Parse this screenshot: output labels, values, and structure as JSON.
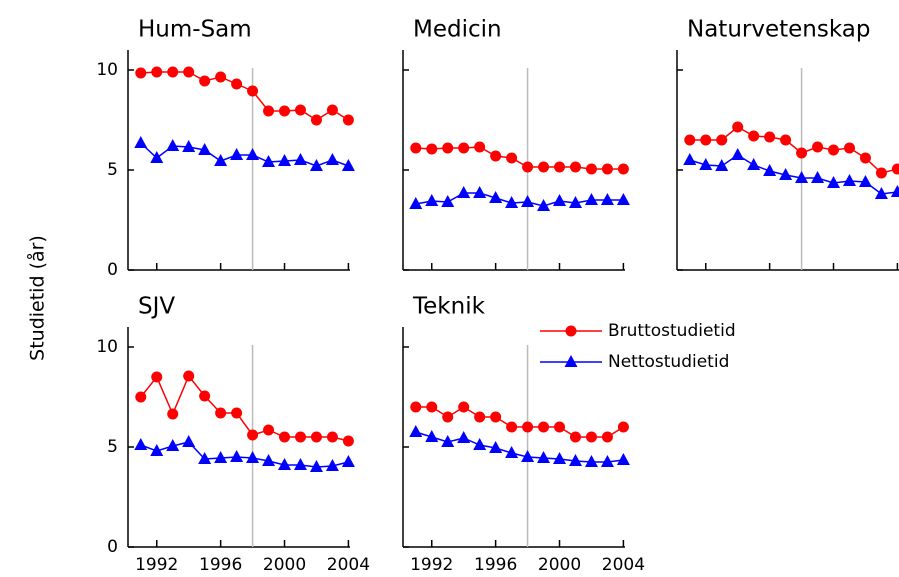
{
  "ylabel": "Studietid (år)",
  "chart_data": [
    {
      "type": "line",
      "title": "Hum-Sam",
      "x": [
        1991,
        1992,
        1993,
        1994,
        1995,
        1996,
        1997,
        1998,
        1999,
        2000,
        2001,
        2002,
        2003,
        2004
      ],
      "xlim": [
        1990.2,
        2004.1
      ],
      "xticks": [
        1992,
        1996,
        2000,
        2004
      ],
      "ylim": [
        0,
        11
      ],
      "yticks": [
        0,
        5,
        10
      ],
      "vline": 1998,
      "series": [
        {
          "color": "#ff0000",
          "marker": "circle",
          "values": [
            9.85,
            9.9,
            9.9,
            9.9,
            9.45,
            9.65,
            9.3,
            8.95,
            7.95,
            7.95,
            8.0,
            7.5,
            8.0,
            7.5
          ]
        },
        {
          "color": "#0000ff",
          "marker": "triangle",
          "values": [
            6.35,
            5.6,
            6.2,
            6.15,
            6.0,
            5.45,
            5.75,
            5.75,
            5.4,
            5.45,
            5.5,
            5.2,
            5.5,
            5.2
          ]
        }
      ]
    },
    {
      "type": "line",
      "title": "Medicin",
      "x": [
        1991,
        1992,
        1993,
        1994,
        1995,
        1996,
        1997,
        1998,
        1999,
        2000,
        2001,
        2002,
        2003,
        2004
      ],
      "xlim": [
        1990.2,
        2004.1
      ],
      "xticks": [
        1992,
        1996,
        2000,
        2004
      ],
      "ylim": [
        0,
        11
      ],
      "yticks": [
        0,
        5,
        10
      ],
      "vline": 1998,
      "series": [
        {
          "color": "#ff0000",
          "marker": "circle",
          "values": [
            6.1,
            6.05,
            6.1,
            6.1,
            6.15,
            5.7,
            5.6,
            5.15,
            5.15,
            5.15,
            5.15,
            5.05,
            5.05,
            5.05
          ]
        },
        {
          "color": "#0000ff",
          "marker": "triangle",
          "values": [
            3.3,
            3.45,
            3.4,
            3.85,
            3.85,
            3.6,
            3.35,
            3.4,
            3.2,
            3.45,
            3.35,
            3.5,
            3.5,
            3.5
          ]
        }
      ]
    },
    {
      "type": "line",
      "title": "Naturvetenskap",
      "x": [
        1991,
        1992,
        1993,
        1994,
        1995,
        1996,
        1997,
        1998,
        1999,
        2000,
        2001,
        2002,
        2003,
        2004
      ],
      "xlim": [
        1990.2,
        2004.1
      ],
      "xticks": [
        1992,
        1996,
        2000,
        2004
      ],
      "ylim": [
        0,
        11
      ],
      "yticks": [
        0,
        5,
        10
      ],
      "vline": 1998,
      "series": [
        {
          "color": "#ff0000",
          "marker": "circle",
          "values": [
            6.5,
            6.5,
            6.5,
            7.15,
            6.7,
            6.65,
            6.5,
            5.85,
            6.15,
            6.0,
            6.1,
            5.6,
            4.85,
            5.05
          ]
        },
        {
          "color": "#0000ff",
          "marker": "triangle",
          "values": [
            5.5,
            5.25,
            5.2,
            5.75,
            5.25,
            4.95,
            4.75,
            4.6,
            4.6,
            4.35,
            4.45,
            4.4,
            3.8,
            3.9
          ]
        }
      ]
    },
    {
      "type": "line",
      "title": "SJV",
      "x": [
        1991,
        1992,
        1993,
        1994,
        1995,
        1996,
        1997,
        1998,
        1999,
        2000,
        2001,
        2002,
        2003,
        2004
      ],
      "xlim": [
        1990.2,
        2004.1
      ],
      "xticks": [
        1992,
        1996,
        2000,
        2004
      ],
      "ylim": [
        0,
        11
      ],
      "yticks": [
        0,
        5,
        10
      ],
      "vline": 1998,
      "series": [
        {
          "color": "#ff0000",
          "marker": "circle",
          "values": [
            7.5,
            8.5,
            6.65,
            8.55,
            7.55,
            6.7,
            6.7,
            5.6,
            5.85,
            5.5,
            5.5,
            5.5,
            5.5,
            5.3
          ]
        },
        {
          "color": "#0000ff",
          "marker": "triangle",
          "values": [
            5.1,
            4.8,
            5.05,
            5.25,
            4.4,
            4.45,
            4.5,
            4.45,
            4.3,
            4.1,
            4.1,
            4.0,
            4.05,
            4.25
          ]
        }
      ]
    },
    {
      "type": "line",
      "title": "Teknik",
      "x": [
        1991,
        1992,
        1993,
        1994,
        1995,
        1996,
        1997,
        1998,
        1999,
        2000,
        2001,
        2002,
        2003,
        2004
      ],
      "xlim": [
        1990.2,
        2004.1
      ],
      "xticks": [
        1992,
        1996,
        2000,
        2004
      ],
      "ylim": [
        0,
        11
      ],
      "yticks": [
        0,
        5,
        10
      ],
      "vline": 1998,
      "series": [
        {
          "name": "Bruttostudietid",
          "color": "#ff0000",
          "marker": "circle",
          "values": [
            7.0,
            7.0,
            6.5,
            7.0,
            6.5,
            6.5,
            6.0,
            6.0,
            6.0,
            6.0,
            5.5,
            5.5,
            5.5,
            6.0
          ]
        },
        {
          "name": "Nettostudietid",
          "color": "#0000ff",
          "marker": "triangle",
          "values": [
            5.75,
            5.5,
            5.25,
            5.45,
            5.1,
            4.95,
            4.7,
            4.5,
            4.45,
            4.4,
            4.3,
            4.25,
            4.25,
            4.35
          ]
        }
      ]
    }
  ]
}
